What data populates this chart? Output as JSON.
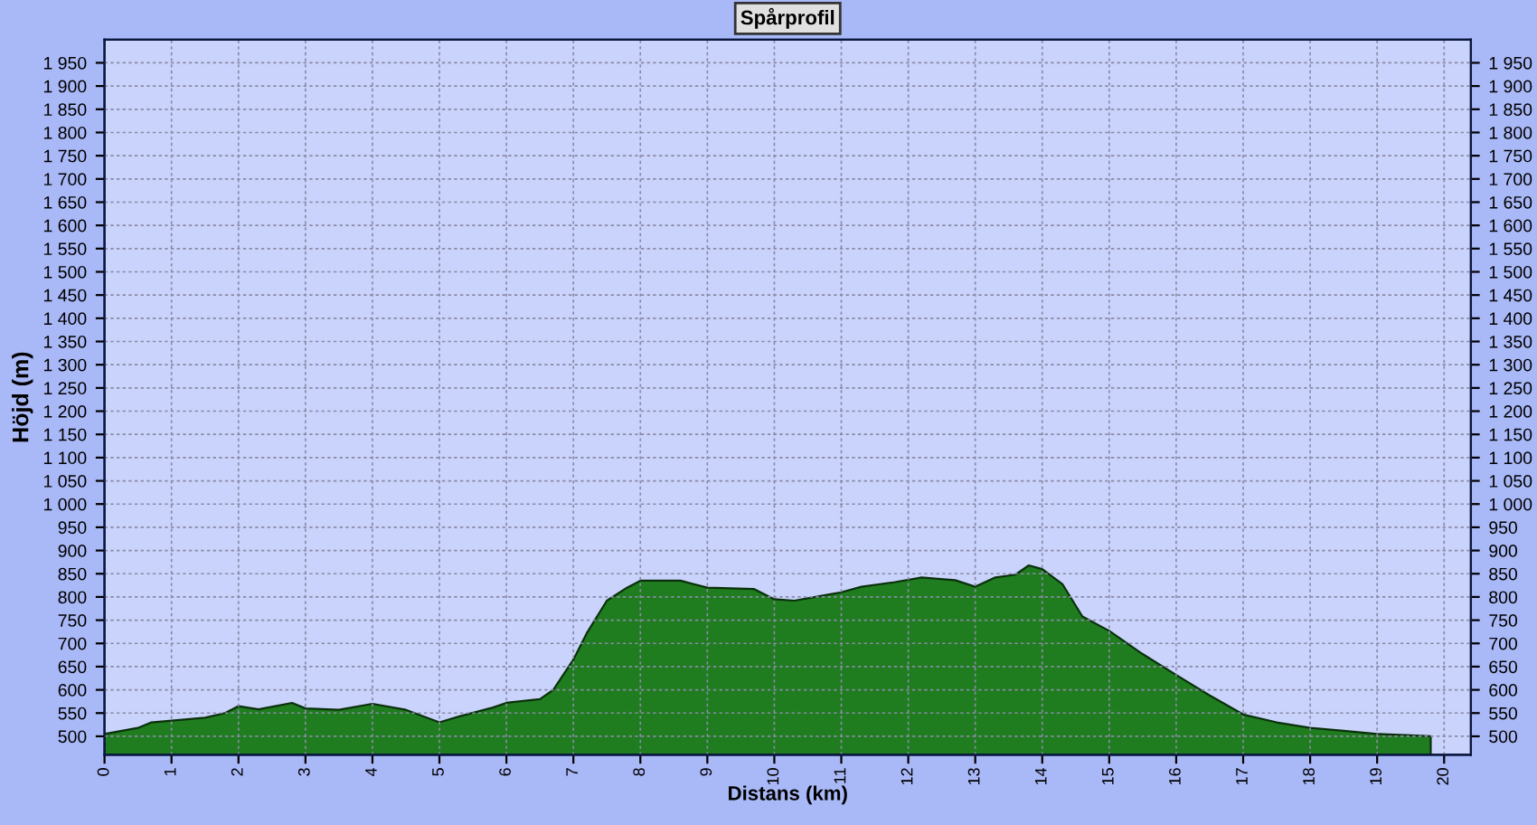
{
  "chart_data": {
    "type": "area",
    "title": "Spårprofil",
    "xlabel": "Distans (km)",
    "ylabel": "Höjd (m)",
    "x": [
      0,
      0.5,
      0.7,
      1.5,
      1.8,
      2,
      2.3,
      2.8,
      3,
      3.5,
      4,
      4.5,
      5,
      5.3,
      5.8,
      6,
      6.5,
      6.7,
      7,
      7.2,
      7.5,
      7.8,
      8,
      8.6,
      9,
      9.7,
      10,
      10.3,
      10.8,
      11,
      11.3,
      11.8,
      12.2,
      12.7,
      13,
      13.3,
      13.6,
      13.8,
      14,
      14.3,
      14.6,
      15,
      15.5,
      16,
      16.5,
      17,
      17.5,
      18,
      18.5,
      19,
      19.5,
      19.8
    ],
    "series": [
      {
        "color": "#1f7d1f",
        "values": [
          505,
          518,
          530,
          540,
          550,
          565,
          558,
          572,
          560,
          557,
          570,
          557,
          530,
          543,
          562,
          572,
          580,
          600,
          665,
          722,
          792,
          820,
          835,
          835,
          820,
          817,
          795,
          792,
          805,
          810,
          822,
          832,
          842,
          836,
          822,
          842,
          848,
          868,
          860,
          828,
          758,
          727,
          677,
          632,
          588,
          547,
          530,
          518,
          512,
          505,
          502,
          500
        ]
      }
    ],
    "xlim": [
      0,
      20.4
    ],
    "xticks": [
      0,
      1,
      2,
      3,
      4,
      5,
      6,
      7,
      8,
      9,
      10,
      11,
      12,
      13,
      14,
      15,
      16,
      17,
      18,
      19,
      20
    ],
    "ylim": [
      460,
      2000
    ],
    "yticks": [
      500,
      550,
      600,
      650,
      700,
      750,
      800,
      850,
      900,
      950,
      {
        "value": 1000,
        "label": "1 000"
      },
      {
        "value": 1050,
        "label": "1 050"
      },
      {
        "value": 1100,
        "label": "1 100"
      },
      {
        "value": 1150,
        "label": "1 150"
      },
      {
        "value": 1200,
        "label": "1 200"
      },
      {
        "value": 1250,
        "label": "1 250"
      },
      {
        "value": 1300,
        "label": "1 300"
      },
      {
        "value": 1350,
        "label": "1 350"
      },
      {
        "value": 1400,
        "label": "1 400"
      },
      {
        "value": 1450,
        "label": "1 450"
      },
      {
        "value": 1500,
        "label": "1 500"
      },
      {
        "value": 1550,
        "label": "1 550"
      },
      {
        "value": 1600,
        "label": "1 600"
      },
      {
        "value": 1650,
        "label": "1 650"
      },
      {
        "value": 1700,
        "label": "1 700"
      },
      {
        "value": 1750,
        "label": "1 750"
      },
      {
        "value": 1800,
        "label": "1 800"
      },
      {
        "value": 1850,
        "label": "1 850"
      },
      {
        "value": 1900,
        "label": "1 900"
      },
      {
        "value": 1950,
        "label": "1 950"
      }
    ],
    "y2lim": [
      460,
      2000
    ],
    "y2ticks": [
      500,
      550,
      600,
      650,
      700,
      750,
      800,
      850,
      900,
      950,
      {
        "value": 1000,
        "label": "1 000"
      },
      {
        "value": 1050,
        "label": "1 050"
      },
      {
        "value": 1100,
        "label": "1 100"
      },
      {
        "value": 1150,
        "label": "1 150"
      },
      {
        "value": 1200,
        "label": "1 200"
      },
      {
        "value": 1250,
        "label": "1 250"
      },
      {
        "value": 1300,
        "label": "1 300"
      },
      {
        "value": 1350,
        "label": "1 350"
      },
      {
        "value": 1400,
        "label": "1 400"
      },
      {
        "value": 1450,
        "label": "1 450"
      },
      {
        "value": 1500,
        "label": "1 500"
      },
      {
        "value": 1550,
        "label": "1 550"
      },
      {
        "value": 1600,
        "label": "1 600"
      },
      {
        "value": 1650,
        "label": "1 650"
      },
      {
        "value": 1700,
        "label": "1 700"
      },
      {
        "value": 1750,
        "label": "1 750"
      },
      {
        "value": 1800,
        "label": "1 800"
      },
      {
        "value": 1850,
        "label": "1 850"
      },
      {
        "value": 1900,
        "label": "1 900"
      },
      {
        "value": 1950,
        "label": "1 950"
      }
    ],
    "grid": true,
    "legend": false
  }
}
